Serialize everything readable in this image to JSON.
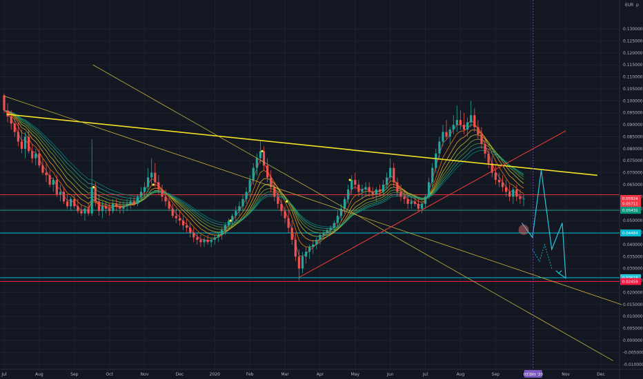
{
  "chart_data": {
    "type": "candlestick",
    "currency": "EUR",
    "currency_label": "EUR",
    "y_axis_label": "p",
    "y_axis": {
      "min": -0.01,
      "max": 0.135,
      "ticks": [
        "0.130000",
        "0.125000",
        "0.120000",
        "0.115000",
        "0.110000",
        "0.105000",
        "0.100000",
        "0.095000",
        "0.090000",
        "0.085000",
        "0.080000",
        "0.075000",
        "0.070000",
        "0.065000",
        "0.060000",
        "0.055000",
        "0.050000",
        "0.045000",
        "0.040000",
        "0.035000",
        "0.030000",
        "0.025000",
        "0.020000",
        "0.015000",
        "0.010000",
        "0.005000",
        "0.000000",
        "-0.005000",
        "-0.010000"
      ]
    },
    "x_axis": {
      "labels": [
        "Jul",
        "Aug",
        "Sep",
        "Oct",
        "Nov",
        "Dec",
        "2020",
        "Feb",
        "Mar",
        "Apr",
        "May",
        "Jun",
        "Jul",
        "Aug",
        "Sep",
        "Oct",
        "Nov",
        "Dec"
      ],
      "month_index": [
        0,
        1,
        2,
        3,
        4,
        5,
        6,
        7,
        8,
        9,
        10,
        11,
        12,
        13,
        14,
        15,
        16,
        17
      ],
      "cursor_label": "03 Oct '20",
      "cursor_month": 15.07
    },
    "price_tags": [
      {
        "value": 0.05924,
        "color": "#f23645",
        "label": "0.05924"
      },
      {
        "value": 0.05711,
        "color": "#f23645",
        "label": "0.05711"
      },
      {
        "value": 0.05431,
        "color": "#089981",
        "label": "0.05431"
      },
      {
        "value": 0.04484,
        "color": "#00bcd4",
        "label": "0.04484"
      },
      {
        "value": 0.02618,
        "color": "#26c6da",
        "label": "0.02618"
      },
      {
        "value": 0.02459,
        "color": "#ff1744",
        "label": "0.02459"
      }
    ],
    "horizontal_lines": [
      {
        "value": 0.0608,
        "color": "#f23645"
      },
      {
        "value": 0.05431,
        "color": "#2a9d8f"
      },
      {
        "value": 0.04484,
        "color": "#00bcd4"
      },
      {
        "value": 0.02618,
        "color": "#00bcd4"
      },
      {
        "value": 0.02459,
        "color": "#ff1744"
      }
    ],
    "trend_lines": [
      {
        "from": [
          0.07,
          0.0944
        ],
        "to": [
          16.9,
          0.0689
        ],
        "color": "#f5e125",
        "width": 1.6
      },
      {
        "from": [
          2.53,
          0.115
        ],
        "to": [
          17.35,
          -0.0085
        ],
        "color": "#c8b43c",
        "width": 0.8
      },
      {
        "from": [
          0.0,
          0.102
        ],
        "to": [
          17.6,
          0.0149
        ],
        "color": "#c8b43c",
        "width": 0.8
      },
      {
        "from": [
          8.4,
          0.0263
        ],
        "to": [
          16.0,
          0.0875
        ],
        "color": "#e53935",
        "width": 1.1
      }
    ],
    "projection_path": {
      "color": "#26c6da",
      "points": [
        [
          14.75,
          0.049
        ],
        [
          15.05,
          0.043
        ],
        [
          15.3,
          0.071
        ],
        [
          15.6,
          0.038
        ],
        [
          15.9,
          0.049
        ],
        [
          16.0,
          0.026
        ],
        [
          15.8,
          0.028
        ]
      ]
    },
    "target_circle": {
      "x": 14.8,
      "y": 0.0462,
      "color": "#e57373"
    },
    "ohlc": [
      [
        0.0,
        0.1023,
        0.103,
        0.095,
        0.096
      ],
      [
        0.1,
        0.096,
        0.099,
        0.091,
        0.0935
      ],
      [
        0.2,
        0.0935,
        0.096,
        0.088,
        0.0905
      ],
      [
        0.3,
        0.0905,
        0.093,
        0.085,
        0.087
      ],
      [
        0.4,
        0.087,
        0.091,
        0.081,
        0.083
      ],
      [
        0.5,
        0.083,
        0.088,
        0.078,
        0.08
      ],
      [
        0.6,
        0.08,
        0.087,
        0.076,
        0.085
      ],
      [
        0.7,
        0.085,
        0.088,
        0.078,
        0.079
      ],
      [
        0.8,
        0.079,
        0.082,
        0.074,
        0.076
      ],
      [
        0.9,
        0.076,
        0.08,
        0.073,
        0.078
      ],
      [
        1.0,
        0.078,
        0.08,
        0.072,
        0.073
      ],
      [
        1.1,
        0.073,
        0.076,
        0.069,
        0.07
      ],
      [
        1.2,
        0.07,
        0.074,
        0.066,
        0.069
      ],
      [
        1.3,
        0.069,
        0.071,
        0.064,
        0.065
      ],
      [
        1.4,
        0.065,
        0.068,
        0.062,
        0.067
      ],
      [
        1.5,
        0.067,
        0.069,
        0.06,
        0.061
      ],
      [
        1.6,
        0.061,
        0.065,
        0.058,
        0.062
      ],
      [
        1.7,
        0.062,
        0.064,
        0.057,
        0.058
      ],
      [
        1.8,
        0.058,
        0.061,
        0.055,
        0.056
      ],
      [
        1.9,
        0.056,
        0.06,
        0.054,
        0.059
      ],
      [
        2.0,
        0.059,
        0.061,
        0.055,
        0.056
      ],
      [
        2.1,
        0.056,
        0.059,
        0.053,
        0.054
      ],
      [
        2.2,
        0.054,
        0.057,
        0.052,
        0.053
      ],
      [
        2.3,
        0.053,
        0.056,
        0.05,
        0.055
      ],
      [
        2.4,
        0.055,
        0.057,
        0.052,
        0.053
      ],
      [
        2.5,
        0.053,
        0.084,
        0.052,
        0.064
      ],
      [
        2.6,
        0.064,
        0.066,
        0.056,
        0.058
      ],
      [
        2.7,
        0.058,
        0.061,
        0.052,
        0.054
      ],
      [
        2.8,
        0.054,
        0.058,
        0.051,
        0.056
      ],
      [
        2.9,
        0.056,
        0.058,
        0.053,
        0.055
      ],
      [
        3.0,
        0.055,
        0.057,
        0.052,
        0.054
      ],
      [
        3.1,
        0.054,
        0.059,
        0.053,
        0.057
      ],
      [
        3.2,
        0.057,
        0.059,
        0.054,
        0.056
      ],
      [
        3.3,
        0.056,
        0.058,
        0.053,
        0.055
      ],
      [
        3.4,
        0.055,
        0.058,
        0.053,
        0.056
      ],
      [
        3.5,
        0.056,
        0.059,
        0.054,
        0.057
      ],
      [
        3.6,
        0.057,
        0.06,
        0.055,
        0.058
      ],
      [
        3.7,
        0.058,
        0.06,
        0.056,
        0.057
      ],
      [
        3.8,
        0.057,
        0.061,
        0.056,
        0.06
      ],
      [
        3.9,
        0.06,
        0.064,
        0.058,
        0.062
      ],
      [
        4.0,
        0.062,
        0.066,
        0.06,
        0.064
      ],
      [
        4.1,
        0.064,
        0.072,
        0.062,
        0.068
      ],
      [
        4.2,
        0.068,
        0.076,
        0.065,
        0.07
      ],
      [
        4.3,
        0.07,
        0.074,
        0.064,
        0.066
      ],
      [
        4.4,
        0.066,
        0.069,
        0.061,
        0.063
      ],
      [
        4.5,
        0.063,
        0.065,
        0.058,
        0.06
      ],
      [
        4.6,
        0.06,
        0.063,
        0.056,
        0.058
      ],
      [
        4.7,
        0.058,
        0.06,
        0.054,
        0.055
      ],
      [
        4.8,
        0.055,
        0.057,
        0.051,
        0.052
      ],
      [
        4.9,
        0.052,
        0.055,
        0.049,
        0.051
      ],
      [
        5.0,
        0.051,
        0.054,
        0.048,
        0.05
      ],
      [
        5.1,
        0.05,
        0.052,
        0.046,
        0.048
      ],
      [
        5.2,
        0.048,
        0.051,
        0.045,
        0.047
      ],
      [
        5.3,
        0.047,
        0.049,
        0.043,
        0.045
      ],
      [
        5.4,
        0.045,
        0.047,
        0.041,
        0.043
      ],
      [
        5.5,
        0.043,
        0.045,
        0.04,
        0.042
      ],
      [
        5.6,
        0.042,
        0.044,
        0.039,
        0.041
      ],
      [
        5.7,
        0.041,
        0.043,
        0.039,
        0.042
      ],
      [
        5.8,
        0.042,
        0.044,
        0.04,
        0.041
      ],
      [
        5.9,
        0.041,
        0.043,
        0.039,
        0.042
      ],
      [
        6.0,
        0.042,
        0.044,
        0.04,
        0.043
      ],
      [
        6.1,
        0.043,
        0.045,
        0.041,
        0.044
      ],
      [
        6.2,
        0.044,
        0.047,
        0.042,
        0.046
      ],
      [
        6.3,
        0.046,
        0.049,
        0.044,
        0.048
      ],
      [
        6.4,
        0.048,
        0.051,
        0.046,
        0.05
      ],
      [
        6.5,
        0.05,
        0.053,
        0.048,
        0.052
      ],
      [
        6.6,
        0.052,
        0.056,
        0.05,
        0.054
      ],
      [
        6.7,
        0.054,
        0.058,
        0.052,
        0.056
      ],
      [
        6.8,
        0.056,
        0.061,
        0.054,
        0.059
      ],
      [
        6.9,
        0.059,
        0.064,
        0.057,
        0.062
      ],
      [
        7.0,
        0.062,
        0.069,
        0.06,
        0.067
      ],
      [
        7.1,
        0.067,
        0.074,
        0.065,
        0.072
      ],
      [
        7.2,
        0.072,
        0.078,
        0.069,
        0.076
      ],
      [
        7.3,
        0.076,
        0.083,
        0.074,
        0.079
      ],
      [
        7.4,
        0.079,
        0.081,
        0.071,
        0.073
      ],
      [
        7.5,
        0.073,
        0.076,
        0.066,
        0.068
      ],
      [
        7.6,
        0.068,
        0.071,
        0.062,
        0.064
      ],
      [
        7.7,
        0.064,
        0.066,
        0.058,
        0.06
      ],
      [
        7.8,
        0.06,
        0.062,
        0.055,
        0.057
      ],
      [
        7.9,
        0.057,
        0.059,
        0.052,
        0.054
      ],
      [
        8.0,
        0.054,
        0.056,
        0.049,
        0.051
      ],
      [
        8.1,
        0.051,
        0.054,
        0.045,
        0.047
      ],
      [
        8.2,
        0.047,
        0.05,
        0.04,
        0.042
      ],
      [
        8.3,
        0.042,
        0.045,
        0.033,
        0.035
      ],
      [
        8.4,
        0.035,
        0.038,
        0.025,
        0.03
      ],
      [
        8.5,
        0.03,
        0.037,
        0.028,
        0.035
      ],
      [
        8.6,
        0.035,
        0.039,
        0.032,
        0.037
      ],
      [
        8.7,
        0.037,
        0.04,
        0.034,
        0.039
      ],
      [
        8.8,
        0.039,
        0.042,
        0.036,
        0.04
      ],
      [
        8.9,
        0.04,
        0.043,
        0.038,
        0.042
      ],
      [
        9.0,
        0.042,
        0.045,
        0.04,
        0.044
      ],
      [
        9.1,
        0.044,
        0.046,
        0.042,
        0.045
      ],
      [
        9.2,
        0.045,
        0.047,
        0.043,
        0.046
      ],
      [
        9.3,
        0.046,
        0.048,
        0.044,
        0.047
      ],
      [
        9.4,
        0.047,
        0.05,
        0.045,
        0.049
      ],
      [
        9.5,
        0.049,
        0.054,
        0.047,
        0.052
      ],
      [
        9.6,
        0.052,
        0.057,
        0.05,
        0.055
      ],
      [
        9.7,
        0.055,
        0.06,
        0.053,
        0.059
      ],
      [
        9.8,
        0.059,
        0.065,
        0.057,
        0.063
      ],
      [
        9.9,
        0.063,
        0.069,
        0.061,
        0.067
      ],
      [
        10.0,
        0.067,
        0.07,
        0.063,
        0.065
      ],
      [
        10.1,
        0.065,
        0.067,
        0.06,
        0.062
      ],
      [
        10.2,
        0.062,
        0.065,
        0.059,
        0.063
      ],
      [
        10.3,
        0.063,
        0.066,
        0.06,
        0.064
      ],
      [
        10.4,
        0.064,
        0.066,
        0.06,
        0.062
      ],
      [
        10.5,
        0.062,
        0.064,
        0.059,
        0.061
      ],
      [
        10.6,
        0.061,
        0.064,
        0.058,
        0.063
      ],
      [
        10.7,
        0.063,
        0.065,
        0.06,
        0.062
      ],
      [
        10.8,
        0.062,
        0.067,
        0.06,
        0.065
      ],
      [
        10.9,
        0.065,
        0.07,
        0.063,
        0.068
      ],
      [
        11.0,
        0.068,
        0.076,
        0.066,
        0.072
      ],
      [
        11.1,
        0.072,
        0.074,
        0.064,
        0.066
      ],
      [
        11.2,
        0.066,
        0.068,
        0.06,
        0.062
      ],
      [
        11.3,
        0.062,
        0.065,
        0.058,
        0.06
      ],
      [
        11.4,
        0.06,
        0.063,
        0.057,
        0.059
      ],
      [
        11.5,
        0.059,
        0.061,
        0.055,
        0.057
      ],
      [
        11.6,
        0.057,
        0.06,
        0.055,
        0.058
      ],
      [
        11.7,
        0.058,
        0.06,
        0.056,
        0.057
      ],
      [
        11.8,
        0.057,
        0.059,
        0.054,
        0.055
      ],
      [
        11.9,
        0.055,
        0.058,
        0.053,
        0.057
      ],
      [
        12.0,
        0.057,
        0.061,
        0.055,
        0.06
      ],
      [
        12.1,
        0.06,
        0.068,
        0.059,
        0.066
      ],
      [
        12.2,
        0.066,
        0.074,
        0.064,
        0.072
      ],
      [
        12.3,
        0.072,
        0.08,
        0.07,
        0.078
      ],
      [
        12.4,
        0.078,
        0.085,
        0.076,
        0.083
      ],
      [
        12.5,
        0.083,
        0.09,
        0.081,
        0.087
      ],
      [
        12.6,
        0.087,
        0.092,
        0.084,
        0.085
      ],
      [
        12.7,
        0.085,
        0.089,
        0.082,
        0.088
      ],
      [
        12.8,
        0.088,
        0.094,
        0.086,
        0.09
      ],
      [
        12.9,
        0.09,
        0.098,
        0.087,
        0.092
      ],
      [
        13.0,
        0.092,
        0.096,
        0.088,
        0.09
      ],
      [
        13.1,
        0.09,
        0.095,
        0.086,
        0.088
      ],
      [
        13.2,
        0.088,
        0.093,
        0.085,
        0.091
      ],
      [
        13.3,
        0.091,
        0.1,
        0.089,
        0.094
      ],
      [
        13.4,
        0.094,
        0.097,
        0.087,
        0.089
      ],
      [
        13.5,
        0.089,
        0.092,
        0.084,
        0.086
      ],
      [
        13.6,
        0.086,
        0.089,
        0.08,
        0.082
      ],
      [
        13.7,
        0.082,
        0.085,
        0.076,
        0.078
      ],
      [
        13.8,
        0.078,
        0.08,
        0.072,
        0.074
      ],
      [
        13.9,
        0.074,
        0.077,
        0.068,
        0.07
      ],
      [
        14.0,
        0.07,
        0.073,
        0.065,
        0.067
      ],
      [
        14.1,
        0.067,
        0.07,
        0.064,
        0.066
      ],
      [
        14.2,
        0.066,
        0.069,
        0.062,
        0.064
      ],
      [
        14.3,
        0.064,
        0.067,
        0.06,
        0.062
      ],
      [
        14.4,
        0.062,
        0.065,
        0.058,
        0.06
      ],
      [
        14.5,
        0.06,
        0.064,
        0.057,
        0.063
      ],
      [
        14.6,
        0.063,
        0.065,
        0.058,
        0.06
      ],
      [
        14.7,
        0.06,
        0.063,
        0.057,
        0.059
      ],
      [
        14.8,
        0.059,
        0.061,
        0.056,
        0.0592
      ]
    ],
    "ribbon_offsets": [
      0.0,
      0.0008,
      0.0016,
      0.0024,
      0.0032,
      0.004,
      0.0048,
      0.0056
    ],
    "ribbon_colors": [
      "#ef5350",
      "#f57c00",
      "#f9a825",
      "#c0ca33",
      "#7cb342",
      "#43a047",
      "#26a69a",
      "#00897b"
    ],
    "up_color": "#26a69a",
    "down_color": "#ef5350",
    "signal_markers": [
      [
        2.55,
        0.064
      ],
      [
        4.25,
        0.065
      ],
      [
        6.45,
        0.05
      ],
      [
        7.35,
        0.079
      ],
      [
        8.05,
        0.058
      ],
      [
        9.85,
        0.067
      ]
    ]
  }
}
